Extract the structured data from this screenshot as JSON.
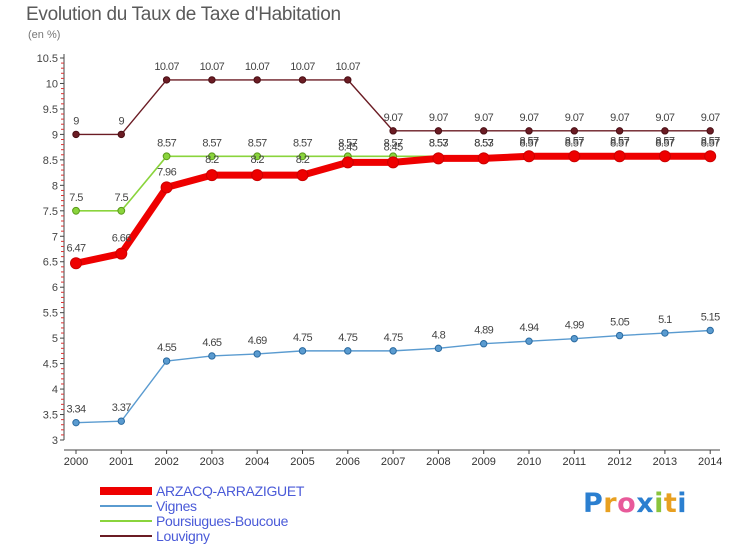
{
  "chart_data": {
    "type": "line",
    "title": "Evolution du Taux de Taxe d'Habitation",
    "ylabel": "(en %)",
    "xlabel": "",
    "x": [
      2000,
      2001,
      2002,
      2003,
      2004,
      2005,
      2006,
      2007,
      2008,
      2009,
      2010,
      2011,
      2012,
      2013,
      2014
    ],
    "ylim": [
      3,
      10.5
    ],
    "yticks": [
      3,
      3.5,
      4,
      4.5,
      5,
      5.5,
      6,
      6.5,
      7,
      7.5,
      8,
      8.5,
      9,
      9.5,
      10,
      10.5
    ],
    "grid": false,
    "legend_position": "bottom-left",
    "series": [
      {
        "name": "Louvigny",
        "color": "#6b1c24",
        "values": [
          9,
          9,
          10.07,
          10.07,
          10.07,
          10.07,
          10.07,
          9.07,
          9.07,
          9.07,
          9.07,
          9.07,
          9.07,
          9.07,
          9.07
        ],
        "labels": [
          "9",
          "9",
          "10.07",
          "10.07",
          "10.07",
          "10.07",
          "10.07",
          "9.07",
          "9.07",
          "9.07",
          "9.07",
          "9.07",
          "9.07",
          "9.07",
          "9.07"
        ]
      },
      {
        "name": "Poursiugues-Boucoue",
        "color": "#8ad43c",
        "values": [
          7.5,
          7.5,
          8.57,
          8.57,
          8.57,
          8.57,
          8.57,
          8.57,
          8.57,
          8.57,
          8.57,
          8.57,
          8.57,
          8.57,
          8.57
        ],
        "labels": [
          "7.5",
          "7.5",
          "8.57",
          "8.57",
          "8.57",
          "8.57",
          "8.57",
          "8.57",
          "8.57",
          "8.57",
          "8.57",
          "8.57",
          "8.57",
          "8.57",
          "8.57"
        ]
      },
      {
        "name": "Vignes",
        "color": "#5a9bd0",
        "values": [
          3.34,
          3.37,
          4.55,
          4.65,
          4.69,
          4.75,
          4.75,
          4.75,
          4.8,
          4.89,
          4.94,
          4.99,
          5.05,
          5.1,
          5.15
        ],
        "labels": [
          "3.34",
          "3.37",
          "4.55",
          "4.65",
          "4.69",
          "4.75",
          "4.75",
          "4.75",
          "4.8",
          "4.89",
          "4.94",
          "4.99",
          "5.05",
          "5.1",
          "5.15"
        ]
      },
      {
        "name": "ARZACQ-ARRAZIGUET",
        "color": "#ee0000",
        "values": [
          6.47,
          6.66,
          7.96,
          8.2,
          8.2,
          8.2,
          8.45,
          8.45,
          8.53,
          8.53,
          8.57,
          8.57,
          8.57,
          8.57,
          8.57
        ],
        "labels": [
          "6.47",
          "6.66",
          "7.96",
          "8.2",
          "8.2",
          "8.2",
          "8.45",
          "8.45",
          "8.53",
          "8.53",
          "8.57",
          "8.57",
          "8.57",
          "8.57",
          "8.57"
        ]
      }
    ],
    "legend": [
      {
        "name": "ARZACQ-ARRAZIGUET",
        "color": "#ee0000"
      },
      {
        "name": "Vignes",
        "color": "#5a9bd0"
      },
      {
        "name": "Poursiugues-Boucoue",
        "color": "#8ad43c"
      },
      {
        "name": "Louvigny",
        "color": "#6b1c24"
      }
    ]
  },
  "logo": {
    "text": "Proxiti",
    "letters": [
      "P",
      "r",
      "o",
      "x",
      "i",
      "t",
      "i"
    ],
    "colors": [
      "#2b7fd0",
      "#e8a020",
      "#e85a9a",
      "#2b7fd0",
      "#8ac43c",
      "#e8a020",
      "#2b7fd0"
    ]
  }
}
